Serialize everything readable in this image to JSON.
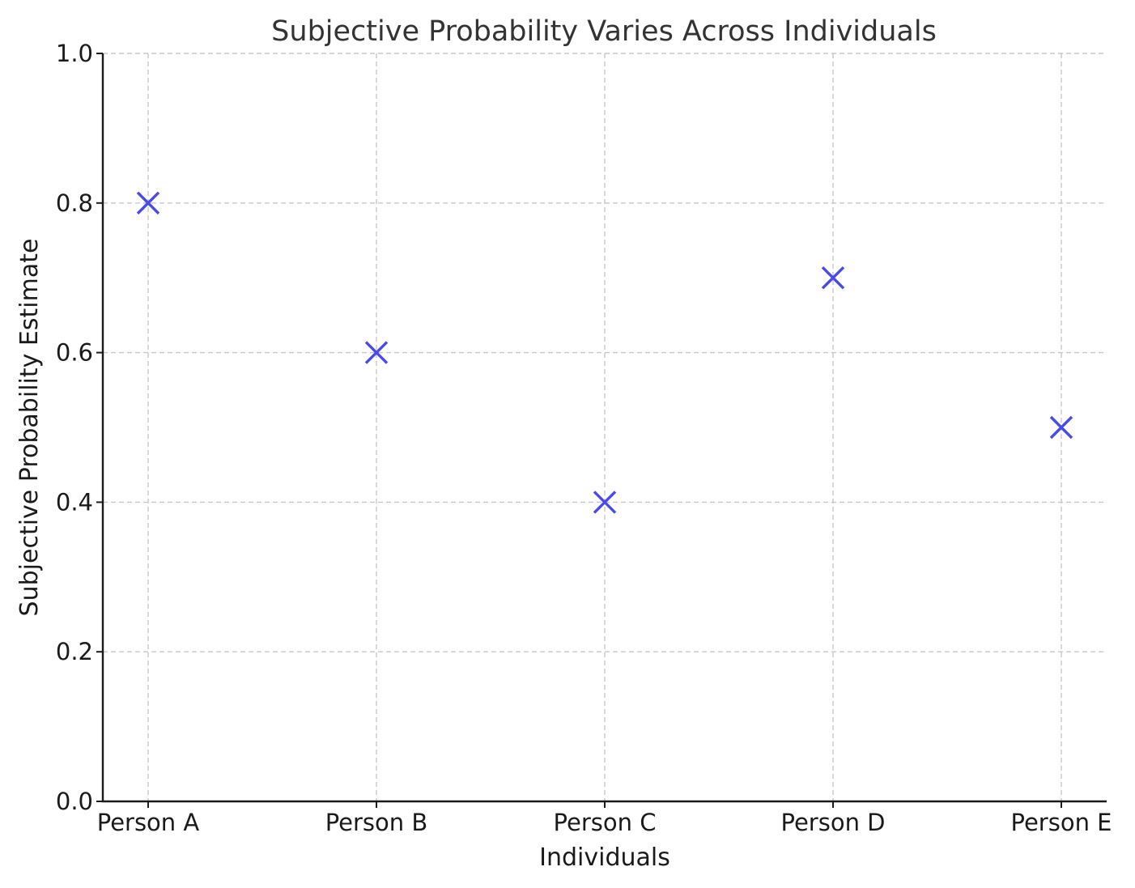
{
  "chart_data": {
    "type": "scatter",
    "title": "Subjective Probability Varies Across Individuals",
    "xlabel": "Individuals",
    "ylabel": "Subjective Probability Estimate",
    "categories": [
      "Person A",
      "Person B",
      "Person C",
      "Person D",
      "Person E"
    ],
    "series": [
      {
        "name": "Subjective probability estimate",
        "marker": "x",
        "color": "#4a4ae8",
        "values": [
          0.8,
          0.6,
          0.4,
          0.7,
          0.5
        ]
      }
    ],
    "ylim": [
      0.0,
      1.0
    ],
    "yticks": [
      "0.0",
      "0.2",
      "0.4",
      "0.6",
      "0.8",
      "1.0"
    ],
    "grid": true,
    "legend": "none"
  },
  "colors": {
    "marker": "#4a4ae8",
    "grid": "#c8c8c8",
    "axis": "#1a1a1a",
    "title": "#333333"
  }
}
